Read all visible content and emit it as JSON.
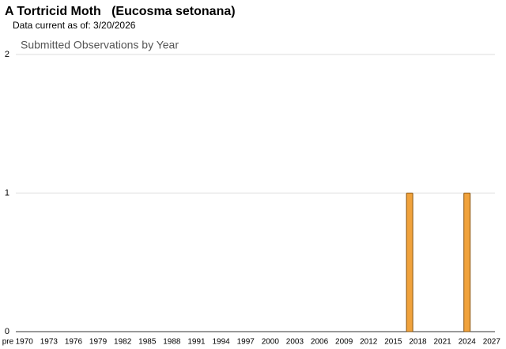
{
  "chart_data": {
    "type": "bar",
    "title": "A Tortricid Moth   (Eucosma setonana)",
    "subtitle": "Data current as of: 3/20/2026",
    "chart_title": "Submitted Observations by Year",
    "categories": [
      "pre",
      null,
      "1970",
      null,
      null,
      "1973",
      null,
      null,
      "1976",
      null,
      null,
      "1979",
      null,
      null,
      "1982",
      null,
      null,
      "1985",
      null,
      null,
      "1988",
      null,
      null,
      "1991",
      null,
      null,
      "1994",
      null,
      null,
      "1997",
      null,
      null,
      "2000",
      null,
      null,
      "2003",
      null,
      null,
      "2006",
      null,
      null,
      "2009",
      null,
      null,
      "2012",
      null,
      null,
      "2015",
      null,
      null,
      "2018",
      null,
      null,
      "2021",
      null,
      null,
      "2024",
      null,
      null,
      "2027"
    ],
    "values": [
      0,
      0,
      0,
      0,
      0,
      0,
      0,
      0,
      0,
      0,
      0,
      0,
      0,
      0,
      0,
      0,
      0,
      0,
      0,
      0,
      0,
      0,
      0,
      0,
      0,
      0,
      0,
      0,
      0,
      0,
      0,
      0,
      0,
      0,
      0,
      0,
      0,
      0,
      0,
      0,
      0,
      0,
      0,
      0,
      0,
      0,
      0,
      0,
      0,
      1,
      0,
      0,
      0,
      0,
      0,
      0,
      1,
      0,
      0,
      0
    ],
    "color": "#f0a23c",
    "ylim": [
      0,
      2
    ],
    "yticks": [
      0,
      1,
      2
    ],
    "grid": true
  }
}
